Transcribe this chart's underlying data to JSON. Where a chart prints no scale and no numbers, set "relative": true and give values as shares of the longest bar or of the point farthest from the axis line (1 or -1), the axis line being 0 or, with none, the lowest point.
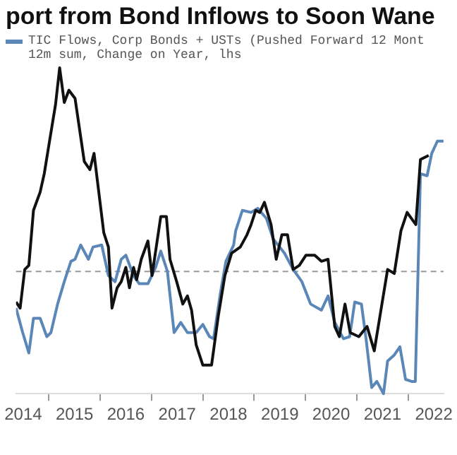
{
  "chart_data": {
    "type": "line",
    "title": "port from Bond Inflows to Soon Wane",
    "relative": true,
    "legend": "top left",
    "xlim": [
      2014.36,
      2022.69
    ],
    "xticks": [
      {
        "value": 2014.5,
        "label": "2014"
      },
      {
        "value": 2015,
        "label": null
      },
      {
        "value": 2015.5,
        "label": "2015"
      },
      {
        "value": 2016,
        "label": null
      },
      {
        "value": 2016.5,
        "label": "2016"
      },
      {
        "value": 2017,
        "label": null
      },
      {
        "value": 2017.5,
        "label": "2017"
      },
      {
        "value": 2018,
        "label": null
      },
      {
        "value": 2018.5,
        "label": "2018"
      },
      {
        "value": 2019,
        "label": null
      },
      {
        "value": 2019.5,
        "label": "2019"
      },
      {
        "value": 2020,
        "label": null
      },
      {
        "value": 2020.5,
        "label": "2020"
      },
      {
        "value": 2021,
        "label": null
      },
      {
        "value": 2021.5,
        "label": "2021"
      },
      {
        "value": 2022,
        "label": null
      },
      {
        "value": 2022.5,
        "label": "2022"
      }
    ],
    "ref_lines": [
      {
        "axis": "y",
        "value": 0,
        "color": "#999999",
        "line_style": "dashed"
      }
    ],
    "series": [
      {
        "color": "#111111",
        "x": [
          2014.36,
          2014.44,
          2014.53,
          2014.61,
          2014.7,
          2014.83,
          2014.91,
          2015.0,
          2015.13,
          2015.21,
          2015.3,
          2015.39,
          2015.51,
          2015.69,
          2015.8,
          2015.88,
          2016.07,
          2016.16,
          2016.23,
          2016.33,
          2016.41,
          2016.5,
          2016.57,
          2016.65,
          2016.71,
          2016.8,
          2016.93,
          2017.01,
          2017.18,
          2017.29,
          2017.36,
          2017.49,
          2017.61,
          2017.7,
          2017.78,
          2017.87,
          2018.0,
          2018.17,
          2018.3,
          2018.43,
          2018.56,
          2018.73,
          2018.86,
          2018.94,
          2019.03,
          2019.11,
          2019.2,
          2019.33,
          2019.43,
          2019.54,
          2019.65,
          2019.76,
          2019.88,
          2020.01,
          2020.18,
          2020.31,
          2020.44,
          2020.57,
          2020.66,
          2020.77,
          2020.87,
          2021.04,
          2021.2,
          2021.34,
          2021.47,
          2021.6,
          2021.73,
          2021.86,
          2021.98,
          2022.15,
          2022.24,
          2022.4
        ],
        "values": [
          -0.15,
          -0.18,
          0.01,
          0.03,
          0.3,
          0.39,
          0.48,
          0.62,
          0.82,
          1,
          0.83,
          0.89,
          0.85,
          0.54,
          0.5,
          0.58,
          0.19,
          0.12,
          -0.18,
          -0.08,
          -0.05,
          0.02,
          -0.08,
          0.02,
          -0.04,
          0.06,
          0.15,
          -0.02,
          0.27,
          0.27,
          0.06,
          -0.05,
          -0.16,
          -0.12,
          -0.19,
          -0.36,
          -0.46,
          -0.46,
          -0.22,
          -0.02,
          0.09,
          0.12,
          0.18,
          0.23,
          0.3,
          0.29,
          0.34,
          0.23,
          0.06,
          0.18,
          0.18,
          0.01,
          0.03,
          0.08,
          0.08,
          0.05,
          0.06,
          -0.27,
          -0.32,
          -0.16,
          -0.3,
          -0.32,
          -0.27,
          -0.39,
          -0.19,
          0.01,
          -0.01,
          0.2,
          0.29,
          0.23,
          0.55,
          0.57
        ]
      },
      {
        "name": "TIC Flows, Corp Bonds + USTs (Pushed Forward 12 Mont\n12m sum, Change on Year, lhs",
        "color": "#5b87b8",
        "x": [
          2014.36,
          2014.49,
          2014.61,
          2014.7,
          2014.83,
          2014.96,
          2015.04,
          2015.17,
          2015.3,
          2015.43,
          2015.51,
          2015.62,
          2015.77,
          2015.86,
          2016.03,
          2016.16,
          2016.29,
          2016.41,
          2016.5,
          2016.65,
          2016.76,
          2016.93,
          2017.08,
          2017.18,
          2017.31,
          2017.44,
          2017.57,
          2017.7,
          2017.87,
          2018.0,
          2018.13,
          2018.21,
          2018.34,
          2018.45,
          2018.6,
          2018.64,
          2018.77,
          2018.94,
          2019.07,
          2019.24,
          2019.37,
          2019.59,
          2019.76,
          2019.93,
          2020.1,
          2020.31,
          2020.44,
          2020.57,
          2020.74,
          2020.86,
          2020.96,
          2021.09,
          2021.18,
          2021.29,
          2021.39,
          2021.52,
          2021.6,
          2021.73,
          2021.84,
          2021.95,
          2022.07,
          2022.14,
          2022.24,
          2022.37,
          2022.46,
          2022.57,
          2022.69
        ],
        "values": [
          -0.18,
          -0.3,
          -0.4,
          -0.23,
          -0.23,
          -0.32,
          -0.3,
          -0.16,
          -0.05,
          0.05,
          0.06,
          0.13,
          0.06,
          0.12,
          0.13,
          -0.02,
          -0.05,
          0.06,
          0.08,
          -0.02,
          -0.06,
          -0.06,
          0.02,
          0.1,
          0.0,
          -0.3,
          -0.25,
          -0.3,
          -0.3,
          -0.26,
          -0.32,
          -0.33,
          -0.11,
          0.05,
          0.13,
          0.2,
          0.3,
          0.29,
          0.31,
          0.26,
          0.16,
          0.09,
          0.01,
          -0.05,
          -0.16,
          -0.19,
          -0.12,
          -0.25,
          -0.33,
          -0.32,
          -0.15,
          -0.16,
          -0.33,
          -0.57,
          -0.54,
          -0.6,
          -0.44,
          -0.41,
          -0.37,
          -0.53,
          -0.54,
          -0.54,
          0.48,
          0.47,
          0.58,
          0.64,
          0.64
        ]
      }
    ]
  }
}
